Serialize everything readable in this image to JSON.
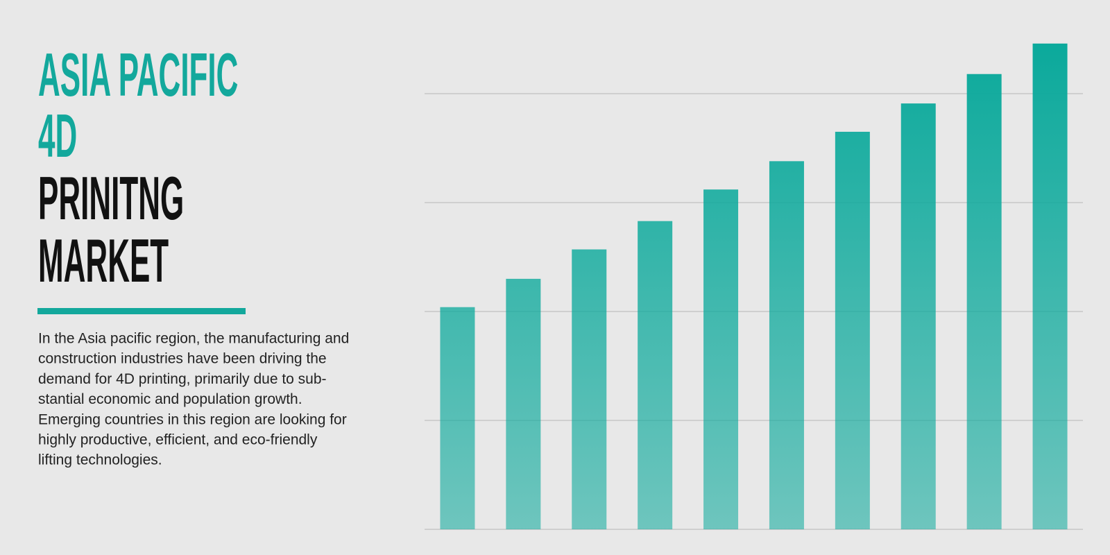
{
  "header": {
    "title_lines": [
      "ASIA PACIFIC",
      "4D",
      "PRINITNG",
      "MARKET"
    ]
  },
  "description": {
    "lines": [
      "In the Asia pacific region, the manufacturing and",
      "construction industries have been driving the",
      "demand for 4D printing, primarily due to sub-",
      "stantial economic and population growth.",
      "Emerging countries in this region are looking for",
      "highly productive, efficient, and eco-friendly",
      "lifting technologies."
    ]
  },
  "chart_data": {
    "type": "bar",
    "categories": [
      null,
      null,
      null,
      null,
      null,
      null,
      null,
      null,
      null,
      null
    ],
    "values": [
      2.04,
      2.3,
      2.57,
      2.83,
      3.12,
      3.38,
      3.65,
      3.91,
      4.18,
      4.46
    ],
    "color": "#0aa99b",
    "ylim": [
      0,
      4.5
    ],
    "yticks": [
      0,
      1,
      2,
      3,
      4
    ],
    "grid": true
  }
}
